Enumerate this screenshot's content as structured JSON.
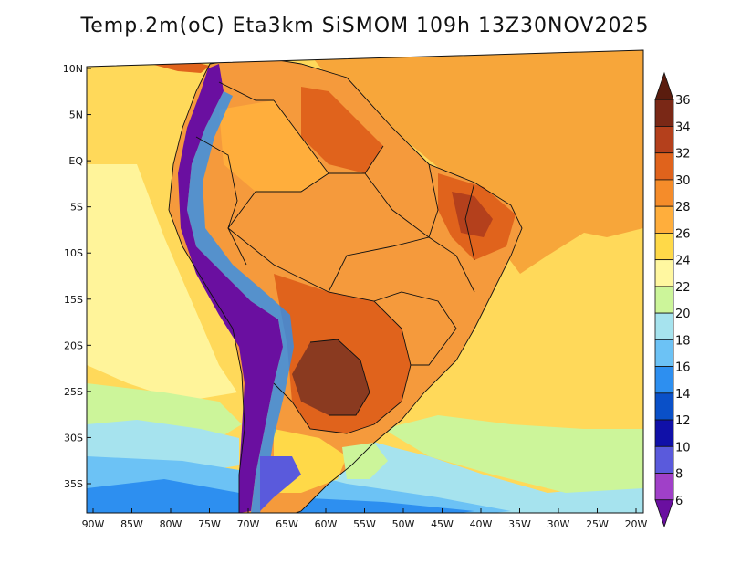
{
  "title": "Temp.2m(oC) Eta3km SiSMOM 109h 13Z30NOV2025",
  "map": {
    "lat_labels": [
      "10N",
      "5N",
      "EQ",
      "5S",
      "10S",
      "15S",
      "20S",
      "25S",
      "30S",
      "35S"
    ],
    "lon_labels": [
      "90W",
      "85W",
      "80W",
      "75W",
      "70W",
      "65W",
      "60W",
      "55W",
      "50W",
      "45W",
      "40W",
      "35W",
      "30W",
      "25W",
      "20W"
    ],
    "lat_values": [
      10,
      5,
      0,
      -5,
      -10,
      -15,
      -20,
      -25,
      -30,
      -35
    ],
    "lon_values": [
      -90,
      -85,
      -80,
      -75,
      -70,
      -65,
      -60,
      -55,
      -50,
      -45,
      -40,
      -35,
      -30,
      -25,
      -20
    ],
    "lat_range": [
      -38,
      11
    ],
    "lon_range": [
      -91,
      -19
    ]
  },
  "colorbar": {
    "levels": [
      "6",
      "8",
      "10",
      "12",
      "14",
      "16",
      "18",
      "20",
      "22",
      "24",
      "26",
      "28",
      "30",
      "32",
      "34",
      "36"
    ],
    "colors": [
      "#6a0fa0",
      "#a040c8",
      "#5a5adc",
      "#1010a8",
      "#0a50c8",
      "#2d8ff0",
      "#6cc2f5",
      "#a6e3ee",
      "#ccf59a",
      "#fff7a0",
      "#ffd948",
      "#ffae3c",
      "#f58c2a",
      "#e0631c",
      "#b4401c",
      "#7a2816",
      "#5a1c0e"
    ]
  },
  "palette": {
    "ocean_warm": "#ffc844",
    "ocean_mild": "#ffd95a",
    "land_hot": "#f59a3c",
    "land_very_hot": "#d86a26",
    "land_extreme": "#8a3a20",
    "andes_cold": "#6a2aa8",
    "south_cold": "#5aa8ee"
  }
}
